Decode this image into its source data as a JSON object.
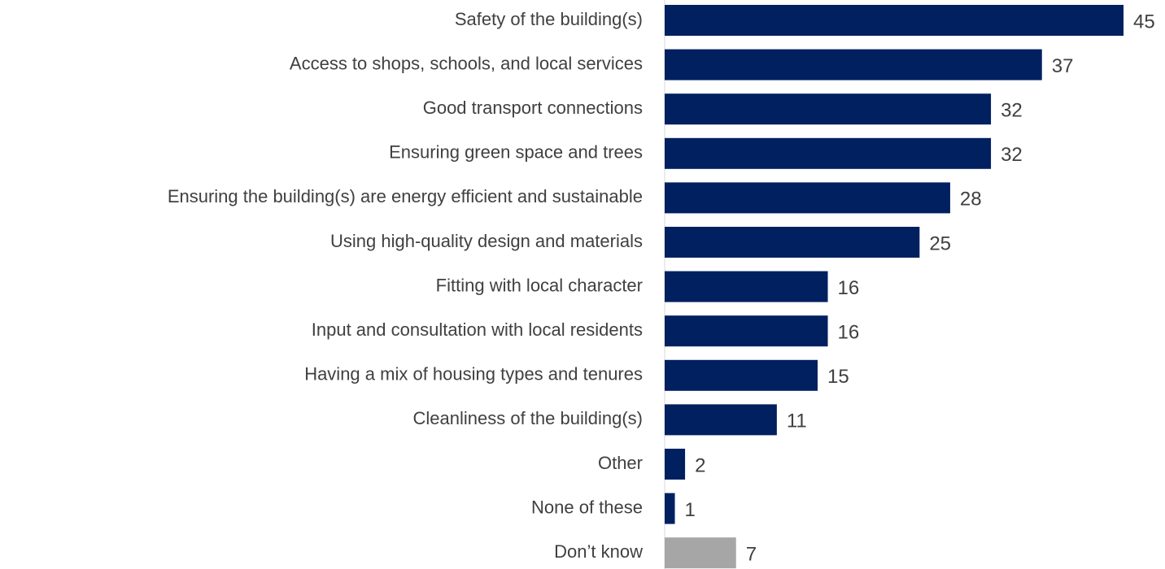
{
  "chart_data": {
    "type": "bar",
    "orientation": "horizontal",
    "categories": [
      "Safety of the building(s)",
      "Access to shops, schools, and local services",
      "Good transport connections",
      "Ensuring green space and trees",
      "Ensuring the building(s) are energy efficient and sustainable",
      "Using high-quality design and materials",
      "Fitting with local character",
      "Input and consultation with local residents",
      "Having a mix of housing types and tenures",
      "Cleanliness of the building(s)",
      "Other",
      "None of these",
      "Don’t know"
    ],
    "values": [
      45,
      37,
      32,
      32,
      28,
      25,
      16,
      16,
      15,
      11,
      2,
      1,
      7
    ],
    "colors": [
      "#002060",
      "#002060",
      "#002060",
      "#002060",
      "#002060",
      "#002060",
      "#002060",
      "#002060",
      "#002060",
      "#002060",
      "#002060",
      "#002060",
      "#a6a6a6"
    ]
  }
}
